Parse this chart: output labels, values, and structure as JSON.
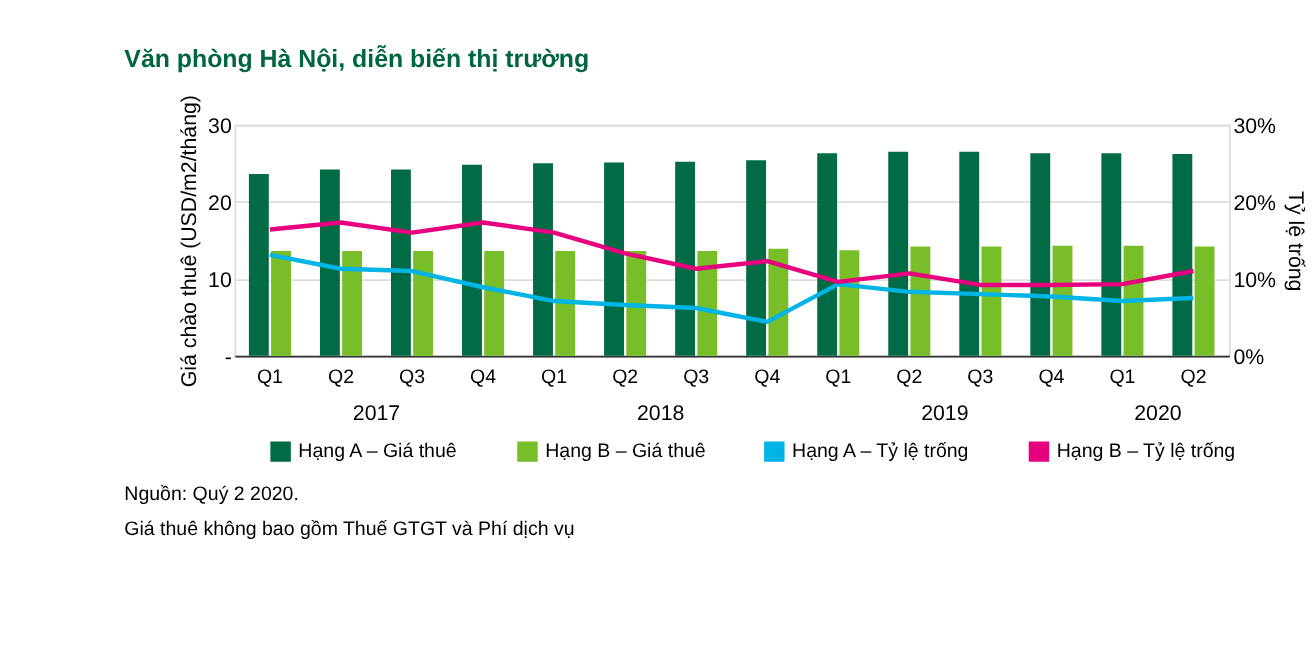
{
  "chart_data": {
    "type": "bar",
    "title": "Văn phòng Hà Nội, diễn biến thị trường",
    "categories": [
      "Q1",
      "Q2",
      "Q3",
      "Q4",
      "Q1",
      "Q2",
      "Q3",
      "Q4",
      "Q1",
      "Q2",
      "Q3",
      "Q4",
      "Q1",
      "Q2"
    ],
    "series": [
      {
        "name": "Hạng A – Giá thuê",
        "color": "#006b45",
        "values": [
          23.6,
          24.2,
          24.2,
          24.8,
          25.0,
          25.1,
          25.2,
          25.4,
          26.3,
          26.5,
          26.5,
          26.3,
          26.3,
          26.2
        ]
      },
      {
        "name": "Hạng B – Giá thuê",
        "color": "#78be28",
        "values": [
          13.6,
          13.6,
          13.6,
          13.6,
          13.6,
          13.6,
          13.6,
          13.9,
          13.7,
          14.2,
          14.2,
          14.3,
          14.3,
          14.2
        ]
      },
      {
        "name": "Hạng A – Tỷ lệ trống",
        "type": "line",
        "axis": "y2",
        "color": "#00b4e6",
        "values": [
          13.1,
          11.3,
          11.0,
          8.9,
          7.1,
          6.6,
          6.2,
          4.4,
          9.3,
          8.3,
          8.0,
          7.7,
          7.1,
          7.5
        ]
      },
      {
        "name": "Hạng B – Tỷ lệ trống",
        "type": "line",
        "axis": "y2",
        "color": "#e6007e",
        "values": [
          16.4,
          17.3,
          16.0,
          17.3,
          16.0,
          13.3,
          11.3,
          12.3,
          9.6,
          10.7,
          9.2,
          9.2,
          9.3,
          11.0
        ]
      }
    ],
    "ylabel": "Giá chào thuê (USD/m2/tháng)",
    "y2label": "Tỷ lệ trống",
    "ylim": [
      0,
      30
    ],
    "yticks": [
      {
        "value": 0,
        "label": "-"
      },
      10,
      20,
      30
    ],
    "y2lim": [
      0,
      30
    ],
    "y2ticks": [
      {
        "value": 0,
        "label": "0%"
      },
      {
        "value": 10,
        "label": "10%"
      },
      {
        "value": 20,
        "label": "20%"
      },
      {
        "value": 30,
        "label": "30%"
      }
    ],
    "annotations": [
      "2017",
      "2018",
      "2019",
      "2020",
      "Nguồn: Quý 2 2020.",
      "Giá thuê không bao gồm Thuế GTGT và Phí dịch vụ"
    ],
    "grid": "y",
    "legend": "bottom"
  }
}
